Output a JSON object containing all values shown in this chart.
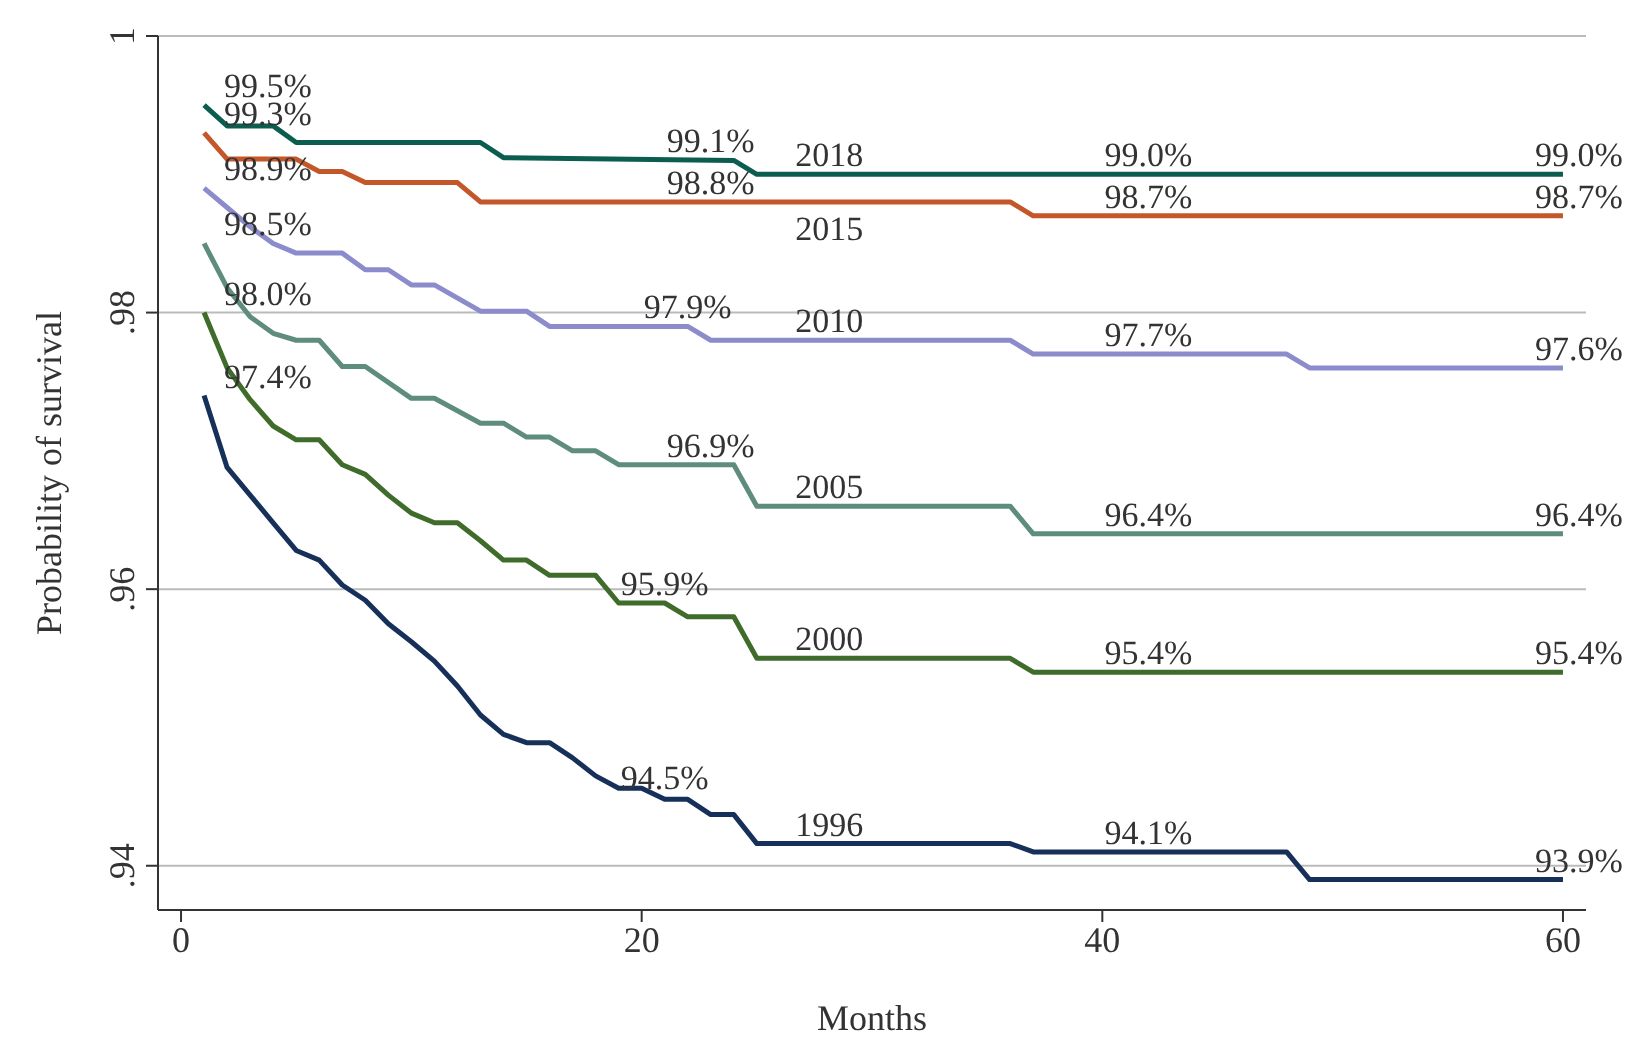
{
  "chart_data": {
    "type": "line",
    "xlabel": "Months",
    "ylabel": "Probability of survival",
    "xlim": [
      -1,
      61
    ],
    "xticks": [
      0,
      20,
      40,
      60
    ],
    "ylim": [
      0.9368,
      1
    ],
    "yticks": [
      {
        "value": 0.94,
        "label": ".94"
      },
      {
        "value": 0.96,
        "label": ".96"
      },
      {
        "value": 0.98,
        "label": ".98"
      },
      1
    ],
    "grid": "y",
    "legend": false,
    "marker": "none",
    "line_style": "solid",
    "series": [
      {
        "name": "2018",
        "color": "#0b5e4f",
        "x": [
          1,
          2,
          4,
          5,
          13,
          14,
          24,
          25,
          60
        ],
        "values": [
          0.995,
          0.9935,
          0.9935,
          0.9923,
          0.9923,
          0.9912,
          0.991,
          0.99,
          0.99
        ]
      },
      {
        "name": "2015",
        "color": "#c4572a",
        "x": [
          1,
          2,
          5,
          6,
          7,
          8,
          12,
          13,
          36,
          37,
          60
        ],
        "values": [
          0.993,
          0.9911,
          0.9911,
          0.9902,
          0.9902,
          0.9894,
          0.9894,
          0.988,
          0.988,
          0.987,
          0.987
        ]
      },
      {
        "name": "2010",
        "color": "#8c8ccc",
        "x": [
          1,
          2,
          3,
          4,
          5,
          7,
          8,
          9,
          10,
          11,
          13,
          15,
          16,
          22,
          23,
          36,
          37,
          48,
          49,
          60
        ],
        "values": [
          0.989,
          0.9876,
          0.9862,
          0.985,
          0.9843,
          0.9843,
          0.9831,
          0.9831,
          0.982,
          0.982,
          0.9801,
          0.9801,
          0.979,
          0.979,
          0.978,
          0.978,
          0.977,
          0.977,
          0.976,
          0.976
        ]
      },
      {
        "name": "2005",
        "color": "#5f8d7d",
        "x": [
          1,
          2,
          3,
          4,
          5,
          6,
          7,
          8,
          10,
          11,
          13,
          14,
          15,
          16,
          17,
          18,
          19,
          24,
          25,
          36,
          37,
          60
        ],
        "values": [
          0.985,
          0.9818,
          0.9797,
          0.9785,
          0.978,
          0.978,
          0.9761,
          0.9761,
          0.9738,
          0.9738,
          0.972,
          0.972,
          0.971,
          0.971,
          0.97,
          0.97,
          0.969,
          0.969,
          0.966,
          0.966,
          0.964,
          0.964
        ]
      },
      {
        "name": "2000",
        "color": "#3f6b2b",
        "x": [
          1,
          2,
          3,
          4,
          5,
          6,
          7,
          8,
          9,
          10,
          11,
          12,
          13,
          14,
          15,
          16,
          18,
          19,
          21,
          22,
          24,
          25,
          36,
          37,
          60
        ],
        "values": [
          0.98,
          0.976,
          0.9737,
          0.9718,
          0.9708,
          0.9708,
          0.969,
          0.9683,
          0.9668,
          0.9655,
          0.9648,
          0.9648,
          0.9635,
          0.9621,
          0.9621,
          0.961,
          0.961,
          0.959,
          0.959,
          0.958,
          0.958,
          0.955,
          0.955,
          0.954,
          0.954
        ]
      },
      {
        "name": "1996",
        "color": "#16305a",
        "x": [
          1,
          2,
          3,
          4,
          5,
          6,
          7,
          8,
          9,
          10,
          11,
          12,
          13,
          14,
          15,
          16,
          17,
          18,
          19,
          20,
          21,
          22,
          23,
          24,
          25,
          36,
          37,
          48,
          49,
          60
        ],
        "values": [
          0.974,
          0.9688,
          0.9668,
          0.9648,
          0.9628,
          0.9621,
          0.9603,
          0.9592,
          0.9575,
          0.9562,
          0.9548,
          0.953,
          0.9509,
          0.9495,
          0.9489,
          0.9489,
          0.9478,
          0.9465,
          0.9456,
          0.9456,
          0.9448,
          0.9448,
          0.9437,
          0.9437,
          0.9416,
          0.9416,
          0.941,
          0.941,
          0.939,
          0.939
        ]
      }
    ],
    "annotations": [
      {
        "text": "99.5%",
        "x": 1,
        "y": 0.995
      },
      {
        "text": "99.3%",
        "x": 1,
        "y": 0.993
      },
      {
        "text": "98.9%",
        "x": 1,
        "y": 0.989
      },
      {
        "text": "98.5%",
        "x": 1,
        "y": 0.985
      },
      {
        "text": "98.0%",
        "x": 1,
        "y": 0.98
      },
      {
        "text": "97.4%",
        "x": 1,
        "y": 0.974
      },
      {
        "text": "99.1%",
        "x": 23,
        "y": 0.991
      },
      {
        "text": "98.8%",
        "x": 23,
        "y": 0.988
      },
      {
        "text": "97.9%",
        "x": 22,
        "y": 0.979
      },
      {
        "text": "96.9%",
        "x": 23,
        "y": 0.969
      },
      {
        "text": "95.9%",
        "x": 21,
        "y": 0.959
      },
      {
        "text": "94.5%",
        "x": 21,
        "y": 0.945
      },
      {
        "text": "99.0%",
        "x": 42,
        "y": 0.99
      },
      {
        "text": "98.7%",
        "x": 42,
        "y": 0.987
      },
      {
        "text": "97.7%",
        "x": 42,
        "y": 0.977
      },
      {
        "text": "96.4%",
        "x": 42,
        "y": 0.964
      },
      {
        "text": "95.4%",
        "x": 42,
        "y": 0.954
      },
      {
        "text": "94.1%",
        "x": 42,
        "y": 0.941
      },
      {
        "text": "99.0%",
        "x": 60,
        "y": 0.99
      },
      {
        "text": "98.7%",
        "x": 60,
        "y": 0.987
      },
      {
        "text": "97.6%",
        "x": 60,
        "y": 0.976
      },
      {
        "text": "96.4%",
        "x": 60,
        "y": 0.964
      },
      {
        "text": "95.4%",
        "x": 60,
        "y": 0.954
      },
      {
        "text": "93.9%",
        "x": 60,
        "y": 0.939
      }
    ]
  }
}
